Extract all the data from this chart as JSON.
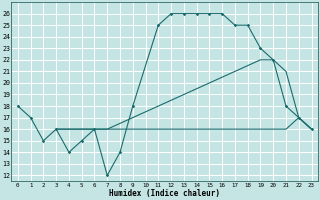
{
  "xlabel": "Humidex (Indice chaleur)",
  "bg_color": "#c5e5e5",
  "grid_color": "#ffffff",
  "line_color": "#1a6b6b",
  "xlim": [
    -0.5,
    23.5
  ],
  "ylim": [
    11.5,
    27.0
  ],
  "yticks": [
    12,
    13,
    14,
    15,
    16,
    17,
    18,
    19,
    20,
    21,
    22,
    23,
    24,
    25,
    26
  ],
  "xticks": [
    0,
    1,
    2,
    3,
    4,
    5,
    6,
    7,
    8,
    9,
    10,
    11,
    12,
    13,
    14,
    15,
    16,
    17,
    18,
    19,
    20,
    21,
    22,
    23
  ],
  "line1_x": [
    0,
    1,
    2,
    3,
    4,
    5,
    6,
    7,
    8,
    9,
    11,
    12,
    13,
    14,
    15,
    16,
    17,
    18,
    19,
    20,
    21,
    22,
    23
  ],
  "line1_y": [
    18,
    17,
    15,
    16,
    14,
    15,
    16,
    12,
    14,
    18,
    25,
    26,
    26,
    26,
    26,
    26,
    25,
    25,
    23,
    22,
    18,
    17,
    16
  ],
  "line2_x": [
    3,
    4,
    5,
    6,
    7,
    8,
    9,
    10,
    11,
    12,
    13,
    14,
    15,
    16,
    17,
    18,
    19,
    20,
    21,
    22,
    23
  ],
  "line2_y": [
    16,
    16,
    16,
    16,
    16,
    16,
    16,
    16,
    16,
    16,
    16,
    16,
    16,
    16,
    16,
    16,
    16,
    16,
    16,
    17,
    16
  ],
  "line3_x": [
    3,
    4,
    5,
    6,
    7,
    8,
    9,
    10,
    11,
    12,
    13,
    14,
    15,
    16,
    17,
    18,
    19,
    20,
    21,
    22,
    23
  ],
  "line3_y": [
    16,
    16,
    16,
    16,
    16,
    16.5,
    17,
    17.5,
    18,
    18.5,
    19,
    19.5,
    20,
    20.5,
    21,
    21.5,
    22,
    22,
    21,
    17,
    16
  ]
}
